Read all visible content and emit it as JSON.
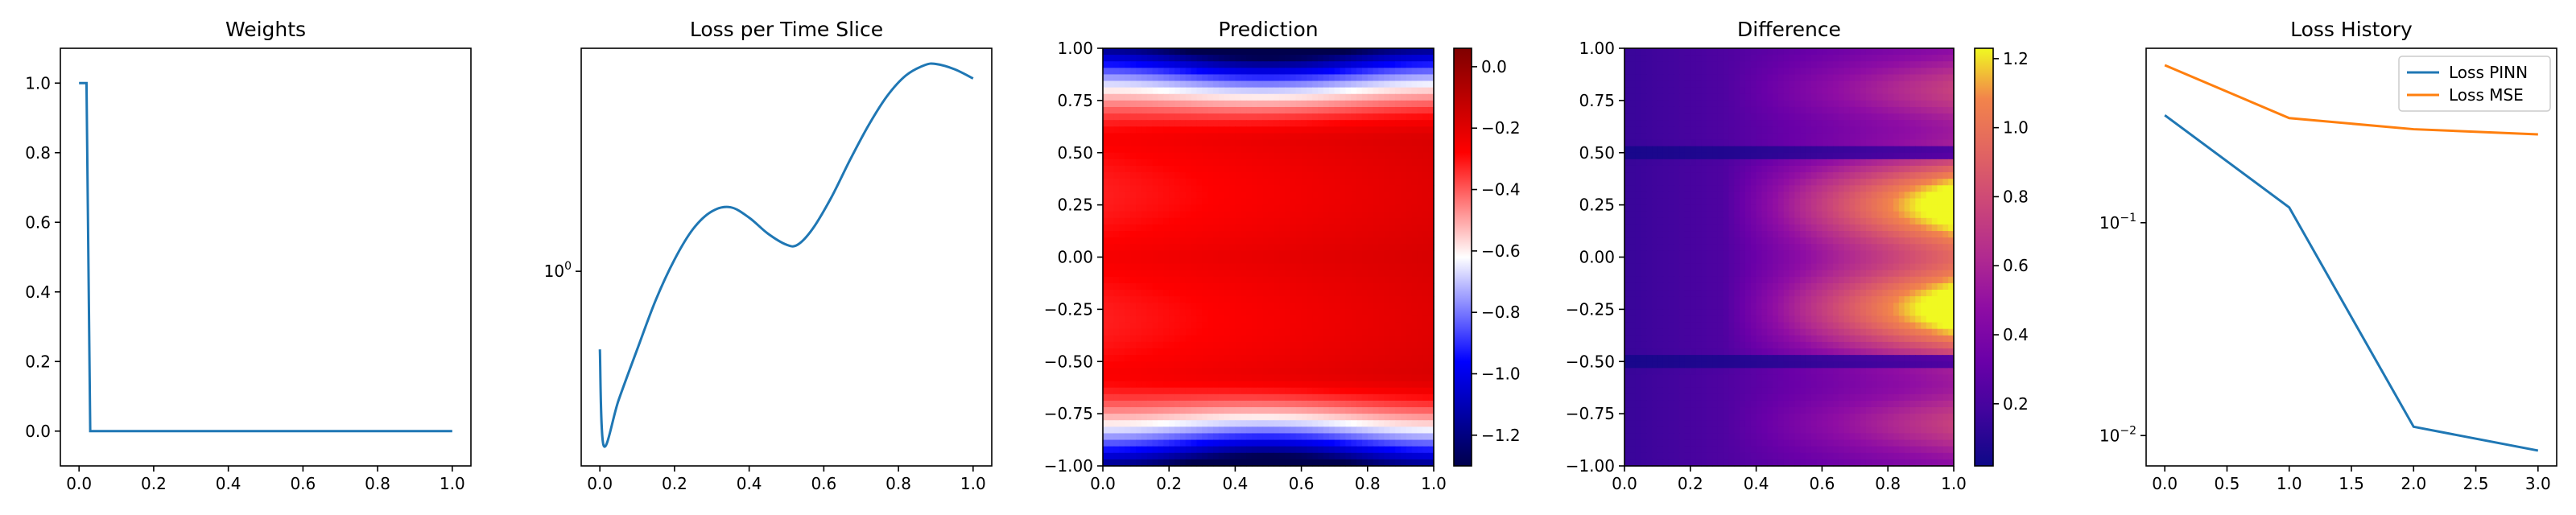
{
  "chart_data": [
    {
      "type": "line",
      "title": "Weights",
      "xlim": [
        -0.05,
        1.05
      ],
      "ylim": [
        -0.1,
        1.1
      ],
      "xticks": [
        "0.0",
        "0.2",
        "0.4",
        "0.6",
        "0.8",
        "1.0"
      ],
      "yticks": [
        "0.0",
        "0.2",
        "0.4",
        "0.6",
        "0.8",
        "1.0"
      ],
      "series": [
        {
          "color": "#1f77b4",
          "x": [
            0.0,
            0.02,
            0.03,
            1.0
          ],
          "y": [
            1.0,
            1.0,
            0.0,
            0.0
          ]
        }
      ]
    },
    {
      "type": "line",
      "title": "Loss per Time Slice",
      "yscale": "log",
      "xlim": [
        -0.05,
        1.05
      ],
      "xticks": [
        "0.0",
        "0.2",
        "0.4",
        "0.6",
        "0.8",
        "1.0"
      ],
      "yticks": [
        "10^0"
      ],
      "series": [
        {
          "color": "#1f77b4",
          "x": [
            0.0,
            0.01,
            0.05,
            0.1,
            0.15,
            0.2,
            0.25,
            0.3,
            0.35,
            0.4,
            0.45,
            0.5,
            0.53,
            0.57,
            0.62,
            0.67,
            0.72,
            0.77,
            0.82,
            0.87,
            0.9,
            0.95,
            1.0
          ],
          "y": [
            0.6,
            0.32,
            0.43,
            0.6,
            0.83,
            1.08,
            1.32,
            1.48,
            1.52,
            1.42,
            1.28,
            1.19,
            1.19,
            1.32,
            1.62,
            2.07,
            2.6,
            3.15,
            3.6,
            3.85,
            3.88,
            3.75,
            3.53
          ]
        }
      ]
    },
    {
      "type": "heatmap",
      "title": "Prediction",
      "colormap": "seismic",
      "xlim": [
        0.0,
        1.0
      ],
      "ylim": [
        -1.0,
        1.0
      ],
      "xticks": [
        "0.0",
        "0.2",
        "0.4",
        "0.6",
        "0.8",
        "1.0"
      ],
      "yticks": [
        "1.00",
        "0.75",
        "0.50",
        "0.25",
        "0.00",
        "−0.25",
        "−0.50",
        "−0.75",
        "−1.00"
      ],
      "colorbar_range": [
        -1.3,
        0.06
      ],
      "colorbar_ticks": [
        "0.0",
        "−0.2",
        "−0.4",
        "−0.6",
        "−0.8",
        "−1.0",
        "−1.2"
      ]
    },
    {
      "type": "heatmap",
      "title": "Difference",
      "colormap": "plasma",
      "xlim": [
        0.0,
        1.0
      ],
      "ylim": [
        -1.0,
        1.0
      ],
      "xticks": [
        "0.0",
        "0.2",
        "0.4",
        "0.6",
        "0.8",
        "1.0"
      ],
      "yticks": [
        "1.00",
        "0.75",
        "0.50",
        "0.25",
        "0.00",
        "−0.25",
        "−0.50",
        "−0.75",
        "−1.00"
      ],
      "colorbar_range": [
        0.02,
        1.23
      ],
      "colorbar_ticks": [
        "1.2",
        "1.0",
        "0.8",
        "0.6",
        "0.4",
        "0.2"
      ]
    },
    {
      "type": "line",
      "title": "Loss History",
      "yscale": "log",
      "xlim": [
        -0.15,
        3.15
      ],
      "xticks": [
        "0.0",
        "0.5",
        "1.0",
        "1.5",
        "2.0",
        "2.5",
        "3.0"
      ],
      "yticks": [
        "10^-1",
        "10^-2"
      ],
      "legend": "top-right",
      "series": [
        {
          "name": "Loss PINN",
          "color": "#1f77b4",
          "x": [
            0,
            1,
            2,
            3
          ],
          "y": [
            0.32,
            0.118,
            0.011,
            0.0085
          ]
        },
        {
          "name": "Loss MSE",
          "color": "#ff7f0e",
          "x": [
            0,
            1,
            2,
            3
          ],
          "y": [
            0.55,
            0.31,
            0.275,
            0.26
          ]
        }
      ]
    }
  ]
}
